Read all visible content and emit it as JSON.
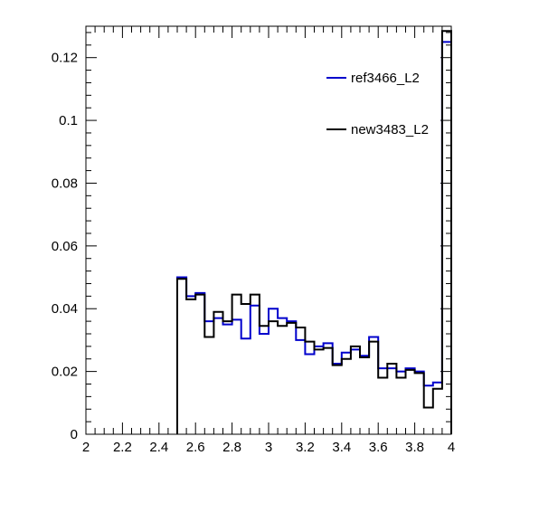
{
  "chart_data": {
    "type": "line",
    "title": "",
    "xlabel": "",
    "ylabel": "",
    "xlim": [
      2,
      4
    ],
    "ylim": [
      0,
      0.13
    ],
    "grid": false,
    "legend_position": "top-right",
    "xticks": [
      2,
      2.2,
      2.4,
      2.6,
      2.8,
      3,
      3.2,
      3.4,
      3.6,
      3.8,
      4
    ],
    "xtick_labels": [
      "2",
      "2.2",
      "2.4",
      "2.6",
      "2.8",
      "3",
      "3.2",
      "3.4",
      "3.6",
      "3.8",
      "4"
    ],
    "yticks": [
      0,
      0.02,
      0.04,
      0.06,
      0.08,
      0.1,
      0.12
    ],
    "ytick_labels": [
      "0",
      "0.02",
      "0.04",
      "0.06",
      "0.08",
      "0.1",
      "0.12"
    ],
    "bin_edges": [
      2.5,
      2.55,
      2.6,
      2.65,
      2.7,
      2.75,
      2.8,
      2.85,
      2.9,
      2.95,
      3.0,
      3.05,
      3.1,
      3.15,
      3.2,
      3.25,
      3.3,
      3.35,
      3.4,
      3.45,
      3.5,
      3.55,
      3.6,
      3.65,
      3.7,
      3.75,
      3.8,
      3.85,
      3.9,
      3.95,
      4.0
    ],
    "series": [
      {
        "name": "ref3466_L2",
        "color": "#0000cc",
        "values": [
          0.05,
          0.044,
          0.045,
          0.036,
          0.037,
          0.035,
          0.0365,
          0.0305,
          0.041,
          0.032,
          0.04,
          0.037,
          0.036,
          0.03,
          0.0255,
          0.028,
          0.029,
          0.0225,
          0.026,
          0.027,
          0.025,
          0.031,
          0.021,
          0.021,
          0.02,
          0.021,
          0.02,
          0.0155,
          0.0165,
          0.125
        ]
      },
      {
        "name": "new3483_L2",
        "color": "#000000",
        "values": [
          0.0495,
          0.043,
          0.0445,
          0.031,
          0.039,
          0.036,
          0.0445,
          0.0415,
          0.0445,
          0.0345,
          0.036,
          0.0345,
          0.0355,
          0.034,
          0.0295,
          0.027,
          0.0275,
          0.022,
          0.024,
          0.028,
          0.0245,
          0.0295,
          0.018,
          0.0225,
          0.018,
          0.0205,
          0.0195,
          0.0085,
          0.0145,
          0.1285
        ]
      }
    ]
  }
}
